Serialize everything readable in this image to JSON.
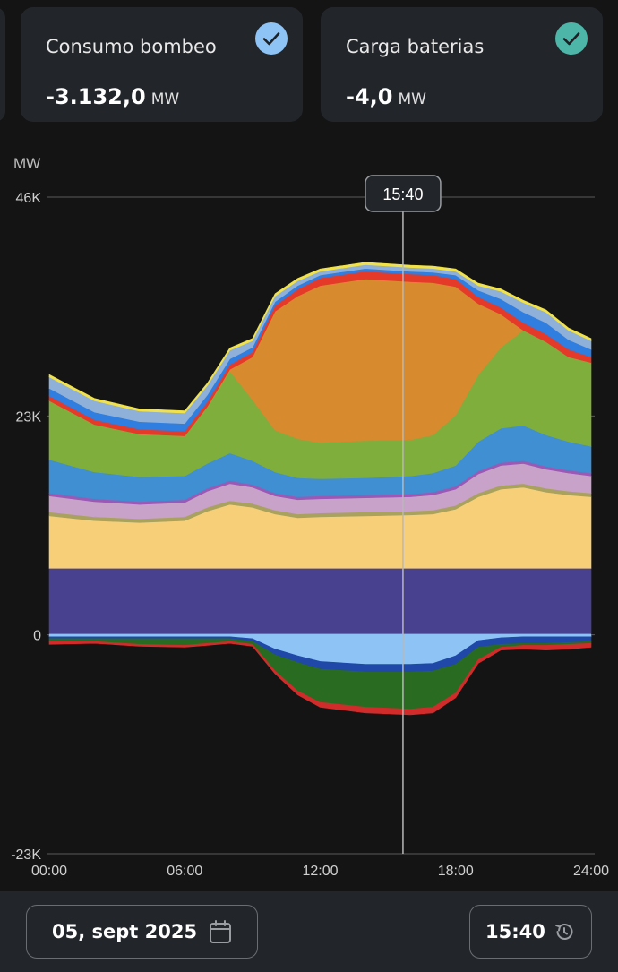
{
  "cards": [
    {
      "label": "Consumo bombeo",
      "value": "-3.132,0",
      "unit": "MW",
      "check_color": "#8ec3f5"
    },
    {
      "label": "Carga baterias",
      "value": "-4,0",
      "unit": "MW",
      "check_color": "#4db6a8"
    }
  ],
  "chart_data": {
    "type": "area",
    "stacked": true,
    "ylabel": "MW",
    "ylim": [
      -23000,
      46000
    ],
    "y_ticks": [
      {
        "label": "46K",
        "value": 46000
      },
      {
        "label": "23K",
        "value": 23000
      },
      {
        "label": "0",
        "value": 0
      },
      {
        "label": "-23K",
        "value": -23000
      }
    ],
    "x_ticks": [
      "00:00",
      "06:00",
      "12:00",
      "18:00",
      "24:00"
    ],
    "x_range_hours": [
      0,
      24
    ],
    "cursor": {
      "label": "15:40",
      "hour": 15.667
    },
    "grid": "horizontal",
    "x_hours": [
      0,
      2,
      4,
      6,
      7,
      8,
      9,
      10,
      11,
      12,
      14,
      16,
      17,
      18,
      19,
      20,
      21,
      22,
      23,
      24
    ],
    "series": [
      {
        "color": "#48418f",
        "values": [
          7000,
          7000,
          7000,
          7000,
          7000,
          7000,
          7000,
          7000,
          7000,
          7000,
          7000,
          7000,
          7000,
          7000,
          7000,
          7000,
          7000,
          7000,
          7000,
          7000
        ]
      },
      {
        "color": "#f7cf78",
        "values": [
          5500,
          5000,
          4800,
          5000,
          6000,
          6700,
          6400,
          5700,
          5300,
          5400,
          5500,
          5600,
          5700,
          6200,
          7500,
          8300,
          8500,
          8000,
          7700,
          7500
        ]
      },
      {
        "color": "#a9a25e",
        "values": [
          400,
          400,
          400,
          400,
          400,
          400,
          400,
          400,
          400,
          400,
          400,
          400,
          400,
          400,
          400,
          400,
          400,
          400,
          400,
          400
        ]
      },
      {
        "color": "#c8a2c8",
        "values": [
          1700,
          1600,
          1500,
          1500,
          1700,
          1800,
          1700,
          1500,
          1500,
          1500,
          1500,
          1500,
          1600,
          1700,
          2000,
          2100,
          2100,
          2000,
          1900,
          1800
        ]
      },
      {
        "color": "#9b59b6",
        "values": [
          300,
          300,
          300,
          300,
          300,
          300,
          300,
          300,
          300,
          300,
          300,
          300,
          300,
          300,
          300,
          300,
          300,
          300,
          300,
          300
        ]
      },
      {
        "color": "#3f8fd2",
        "values": [
          3500,
          2800,
          2600,
          2500,
          2600,
          2900,
          2500,
          2200,
          2000,
          1800,
          1800,
          1900,
          2000,
          2200,
          3100,
          3600,
          3700,
          3300,
          3000,
          2800
        ]
      },
      {
        "color": "#7fae3d",
        "values": [
          6200,
          5000,
          4500,
          4200,
          6000,
          8600,
          6400,
          4400,
          4100,
          3800,
          3900,
          3800,
          4000,
          5300,
          7000,
          8500,
          10000,
          9800,
          8900,
          8800
        ]
      },
      {
        "color": "#d88a2f",
        "values": [
          0,
          0,
          0,
          0,
          0,
          200,
          4500,
          12500,
          15000,
          16500,
          17000,
          16600,
          16000,
          13500,
          7500,
          3500,
          0,
          0,
          0,
          0
        ]
      },
      {
        "color": "#e53a2a",
        "values": [
          500,
          500,
          500,
          500,
          500,
          500,
          500,
          600,
          700,
          800,
          800,
          800,
          800,
          800,
          700,
          700,
          800,
          800,
          800,
          600
        ]
      },
      {
        "color": "#2f7ee0",
        "values": [
          800,
          800,
          800,
          800,
          700,
          600,
          500,
          400,
          400,
          300,
          300,
          300,
          300,
          400,
          700,
          900,
          1100,
          1200,
          1000,
          800
        ]
      },
      {
        "color": "#8fb0d8",
        "values": [
          1200,
          1200,
          1100,
          1100,
          1000,
          900,
          700,
          600,
          500,
          400,
          400,
          400,
          400,
          400,
          500,
          800,
          1000,
          1100,
          1000,
          900
        ]
      },
      {
        "color": "#f2e24a",
        "values": [
          250,
          250,
          250,
          250,
          250,
          250,
          250,
          250,
          250,
          250,
          250,
          250,
          250,
          250,
          250,
          250,
          250,
          250,
          250,
          250
        ]
      },
      {
        "color": "#8ec3f5",
        "values": [
          -200,
          -200,
          -200,
          -200,
          -200,
          -200,
          -400,
          -1500,
          -2200,
          -2800,
          -3100,
          -3100,
          -3000,
          -2200,
          -600,
          -300,
          -200,
          -200,
          -200,
          -200
        ]
      },
      {
        "color": "#1f48a8",
        "values": [
          -200,
          -200,
          -200,
          -200,
          -200,
          -200,
          -300,
          -600,
          -700,
          -800,
          -800,
          -800,
          -800,
          -900,
          -700,
          -700,
          -700,
          -700,
          -600,
          -500
        ]
      },
      {
        "color": "#2a6b22",
        "values": [
          -300,
          -300,
          -600,
          -700,
          -500,
          -300,
          -300,
          -1700,
          -3000,
          -3500,
          -3700,
          -3900,
          -3800,
          -3000,
          -1300,
          -300,
          -200,
          -200,
          -200,
          -200
        ]
      },
      {
        "color": "#d12c2c",
        "values": [
          -300,
          -200,
          -200,
          -200,
          -200,
          -200,
          -200,
          -300,
          -400,
          -500,
          -600,
          -600,
          -600,
          -500,
          -400,
          -300,
          -400,
          -500,
          -500,
          -400
        ]
      }
    ]
  },
  "bottom": {
    "date": "05, sept 2025",
    "time": "15:40",
    "date_icon": "calendar-icon",
    "time_icon": "history-icon"
  }
}
